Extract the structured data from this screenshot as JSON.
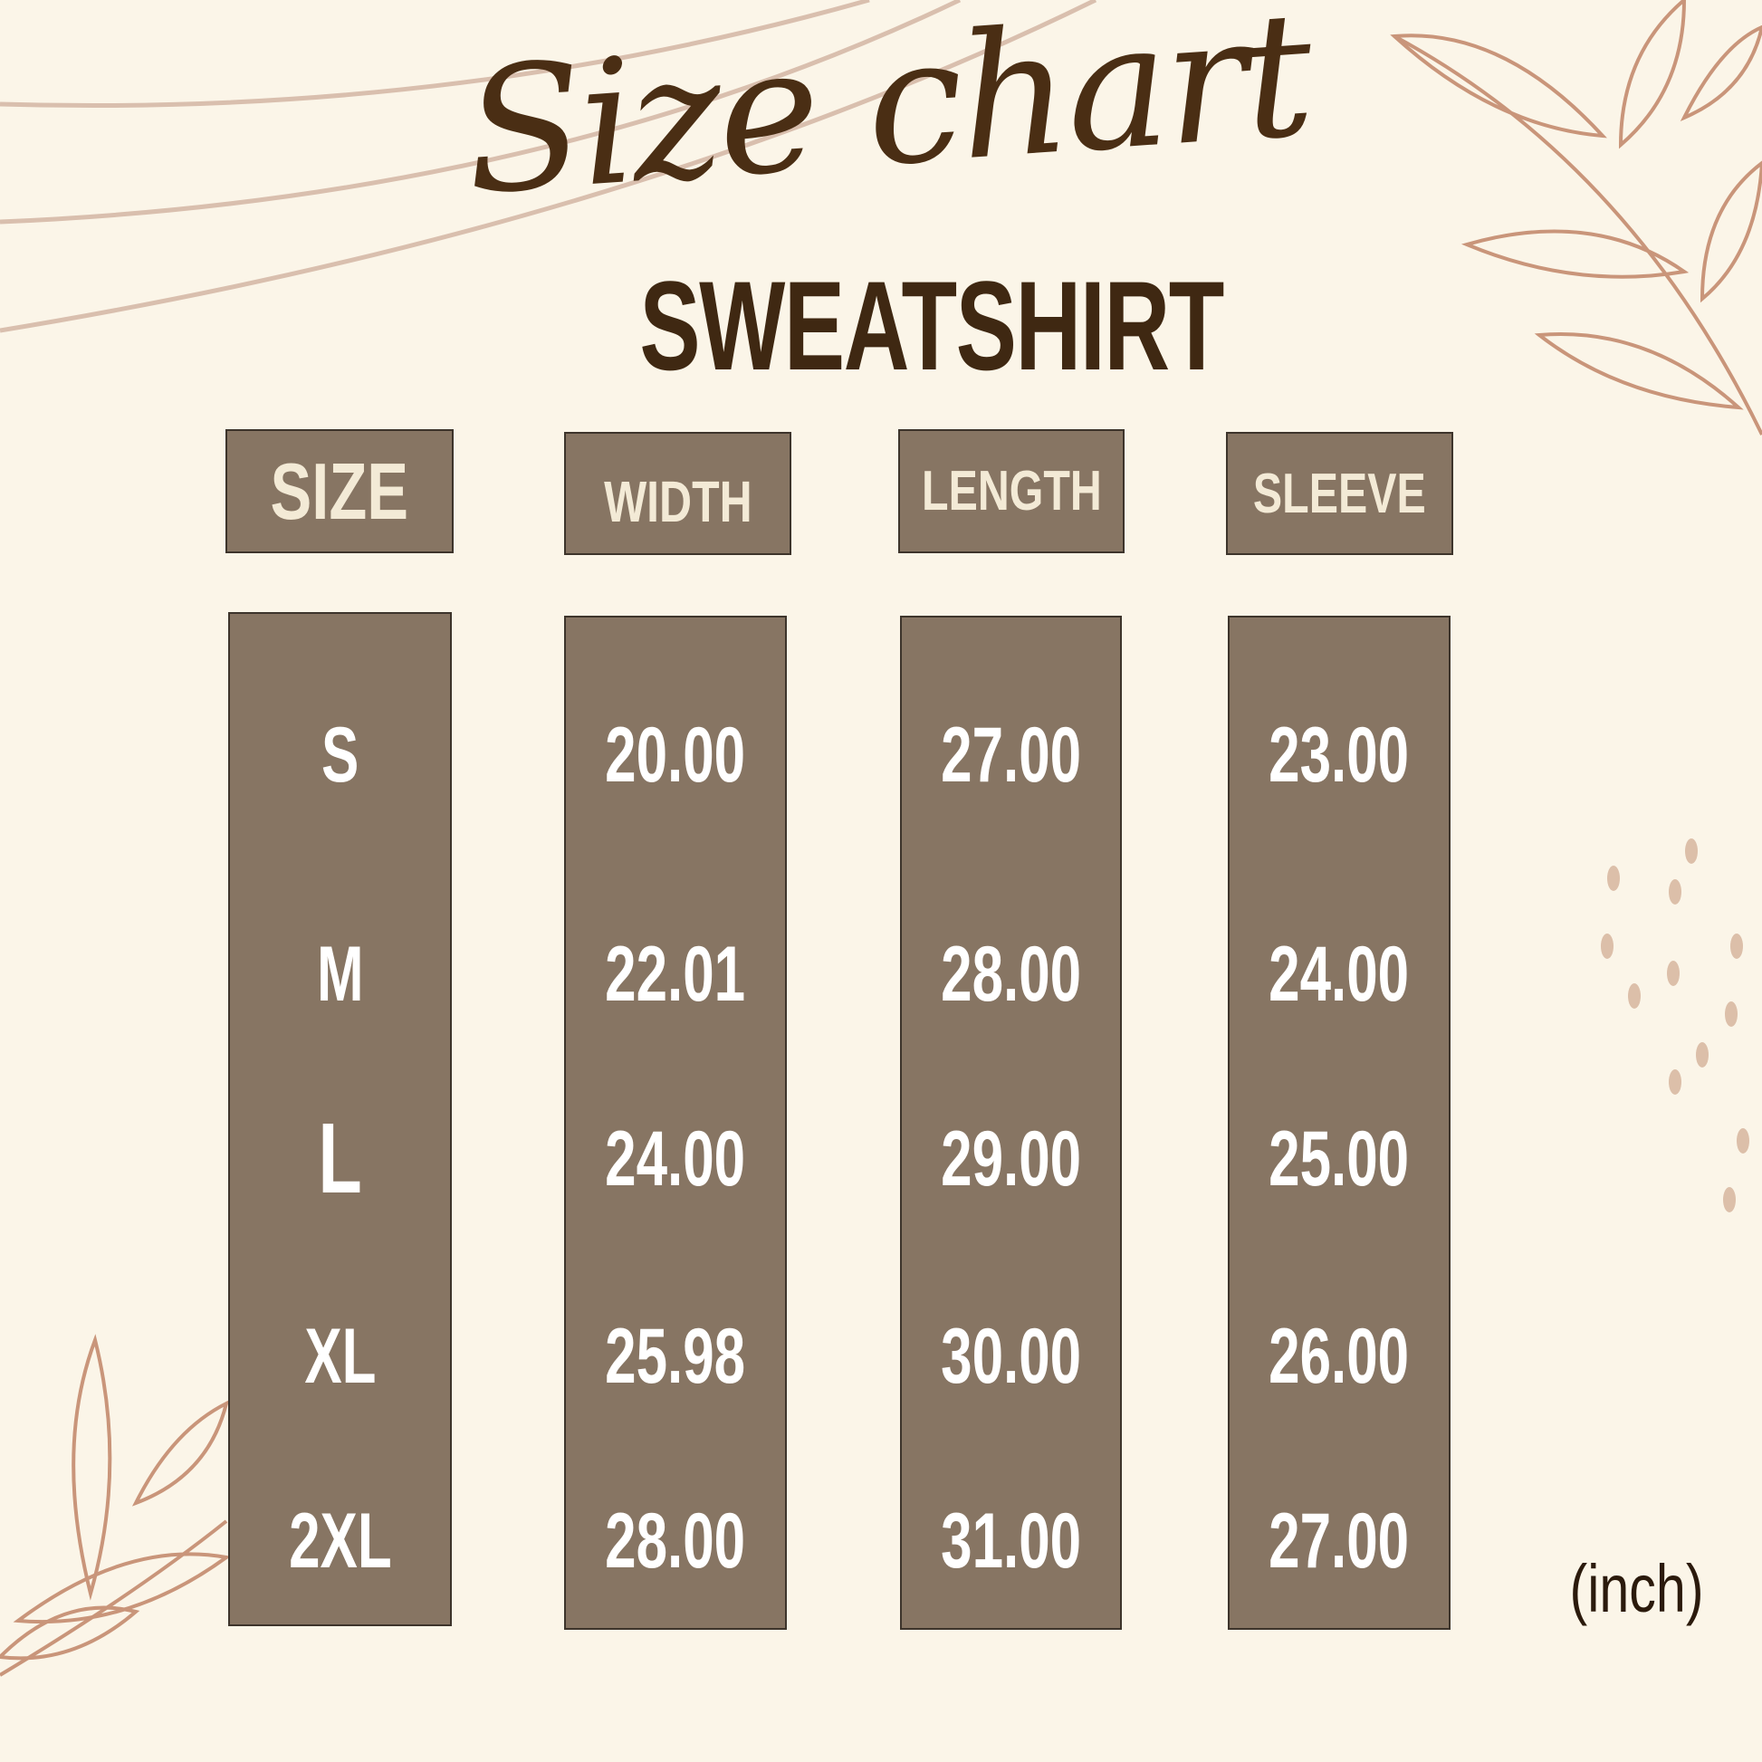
{
  "title": "Size chart",
  "subtitle": "SWEATSHIRT",
  "headers": [
    "SIZE",
    "WIDTH",
    "LENGTH",
    "SLEEVE"
  ],
  "rows": [
    {
      "size": "S",
      "width": "20.00",
      "length": "27.00",
      "sleeve": "23.00"
    },
    {
      "size": "M",
      "width": "22.01",
      "length": "28.00",
      "sleeve": "24.00"
    },
    {
      "size": "L",
      "width": "24.00",
      "length": "29.00",
      "sleeve": "25.00"
    },
    {
      "size": "XL",
      "width": "25.98",
      "length": "30.00",
      "sleeve": "26.00"
    },
    {
      "size": "2XL",
      "width": "28.00",
      "length": "31.00",
      "sleeve": "27.00"
    }
  ],
  "unit": "(inch)",
  "colors": {
    "background": "#fbf5e8",
    "box": "#877563",
    "title": "#4a2e14",
    "decoration": "#c9957a"
  }
}
